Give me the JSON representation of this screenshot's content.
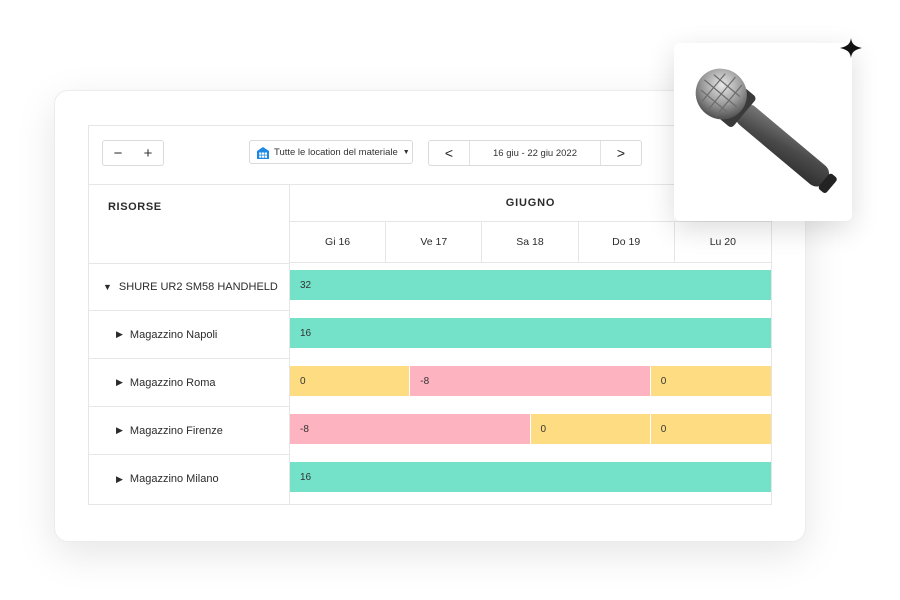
{
  "toolbar": {
    "zoom_out_label": "−",
    "zoom_in_label": "+",
    "location_filter_label": "Tutte le location del materiale",
    "location_icon": "warehouse-icon",
    "prev_label": "<",
    "next_label": ">",
    "date_range": "16 giu - 22 giu 2022"
  },
  "resources_header": "RISORSE",
  "month": "GIUGNO",
  "days": [
    "Gi 16",
    "Ve 17",
    "Sa 18",
    "Do 19",
    "Lu 20"
  ],
  "colors": {
    "available": "#74e2c8",
    "zero": "#fedc82",
    "shortage": "#feb3c0"
  },
  "rows": [
    {
      "label": "SHURE UR2 SM58 HANDHELD",
      "expanded": true,
      "segments": [
        {
          "value": "32",
          "status": "available",
          "start_day": 0,
          "end_day": 5
        }
      ]
    },
    {
      "label": "Magazzino Napoli",
      "expanded": false,
      "segments": [
        {
          "value": "16",
          "status": "available",
          "start_day": 0,
          "end_day": 5
        }
      ]
    },
    {
      "label": "Magazzino Roma",
      "expanded": false,
      "segments": [
        {
          "value": "0",
          "status": "zero",
          "start_day": 0,
          "end_day": 1.25
        },
        {
          "value": "-8",
          "status": "shortage",
          "start_day": 1.25,
          "end_day": 3.75
        },
        {
          "value": "0",
          "status": "zero",
          "start_day": 3.75,
          "end_day": 5
        }
      ]
    },
    {
      "label": "Magazzino Firenze",
      "expanded": false,
      "segments": [
        {
          "value": "-8",
          "status": "shortage",
          "start_day": 0,
          "end_day": 2.5
        },
        {
          "value": "0",
          "status": "zero",
          "start_day": 2.5,
          "end_day": 3.75
        },
        {
          "value": "0",
          "status": "zero",
          "start_day": 3.75,
          "end_day": 5
        }
      ]
    },
    {
      "label": "Magazzino Milano",
      "expanded": false,
      "segments": [
        {
          "value": "16",
          "status": "available",
          "start_day": 0,
          "end_day": 5
        }
      ]
    }
  ],
  "popup": {
    "image": "microphone-icon"
  },
  "cursor_icon": "sparkle-cursor-icon"
}
